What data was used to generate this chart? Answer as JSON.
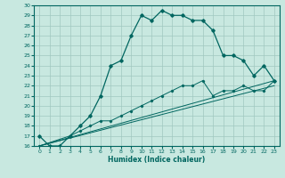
{
  "xlabel": "Humidex (Indice chaleur)",
  "bg_color": "#c8e8e0",
  "grid_color": "#a0c8c0",
  "line_color": "#006660",
  "xlim": [
    -0.5,
    23.5
  ],
  "ylim": [
    16,
    30
  ],
  "yticks": [
    16,
    17,
    18,
    19,
    20,
    21,
    22,
    23,
    24,
    25,
    26,
    27,
    28,
    29,
    30
  ],
  "xticks": [
    0,
    1,
    2,
    3,
    4,
    5,
    6,
    7,
    8,
    9,
    10,
    11,
    12,
    13,
    14,
    15,
    16,
    17,
    18,
    19,
    20,
    21,
    22,
    23
  ],
  "main_line": {
    "x": [
      0,
      1,
      2,
      3,
      4,
      5,
      6,
      7,
      8,
      9,
      10,
      11,
      12,
      13,
      14,
      15,
      16,
      17,
      18,
      19,
      20,
      21,
      22,
      23
    ],
    "y": [
      17,
      16,
      16,
      17,
      18,
      19,
      21,
      24,
      24.5,
      27,
      29,
      28.5,
      29.5,
      29,
      29,
      28.5,
      28.5,
      27.5,
      25,
      25,
      24.5,
      23,
      24,
      22.5
    ]
  },
  "line2": {
    "x": [
      0,
      3,
      4,
      5,
      6,
      7,
      8,
      9,
      10,
      11,
      12,
      13,
      14,
      15,
      16,
      17,
      18,
      19,
      20,
      21,
      22,
      23
    ],
    "y": [
      16,
      17,
      17.5,
      18,
      18.5,
      18.5,
      19,
      19.5,
      20,
      20.5,
      21,
      21.5,
      22,
      22,
      22.5,
      21,
      21.5,
      21.5,
      22,
      21.5,
      21.5,
      22.5
    ]
  },
  "line3": {
    "x": [
      0,
      23
    ],
    "y": [
      16,
      22.5
    ]
  },
  "line4": {
    "x": [
      0,
      23
    ],
    "y": [
      16,
      22
    ]
  }
}
